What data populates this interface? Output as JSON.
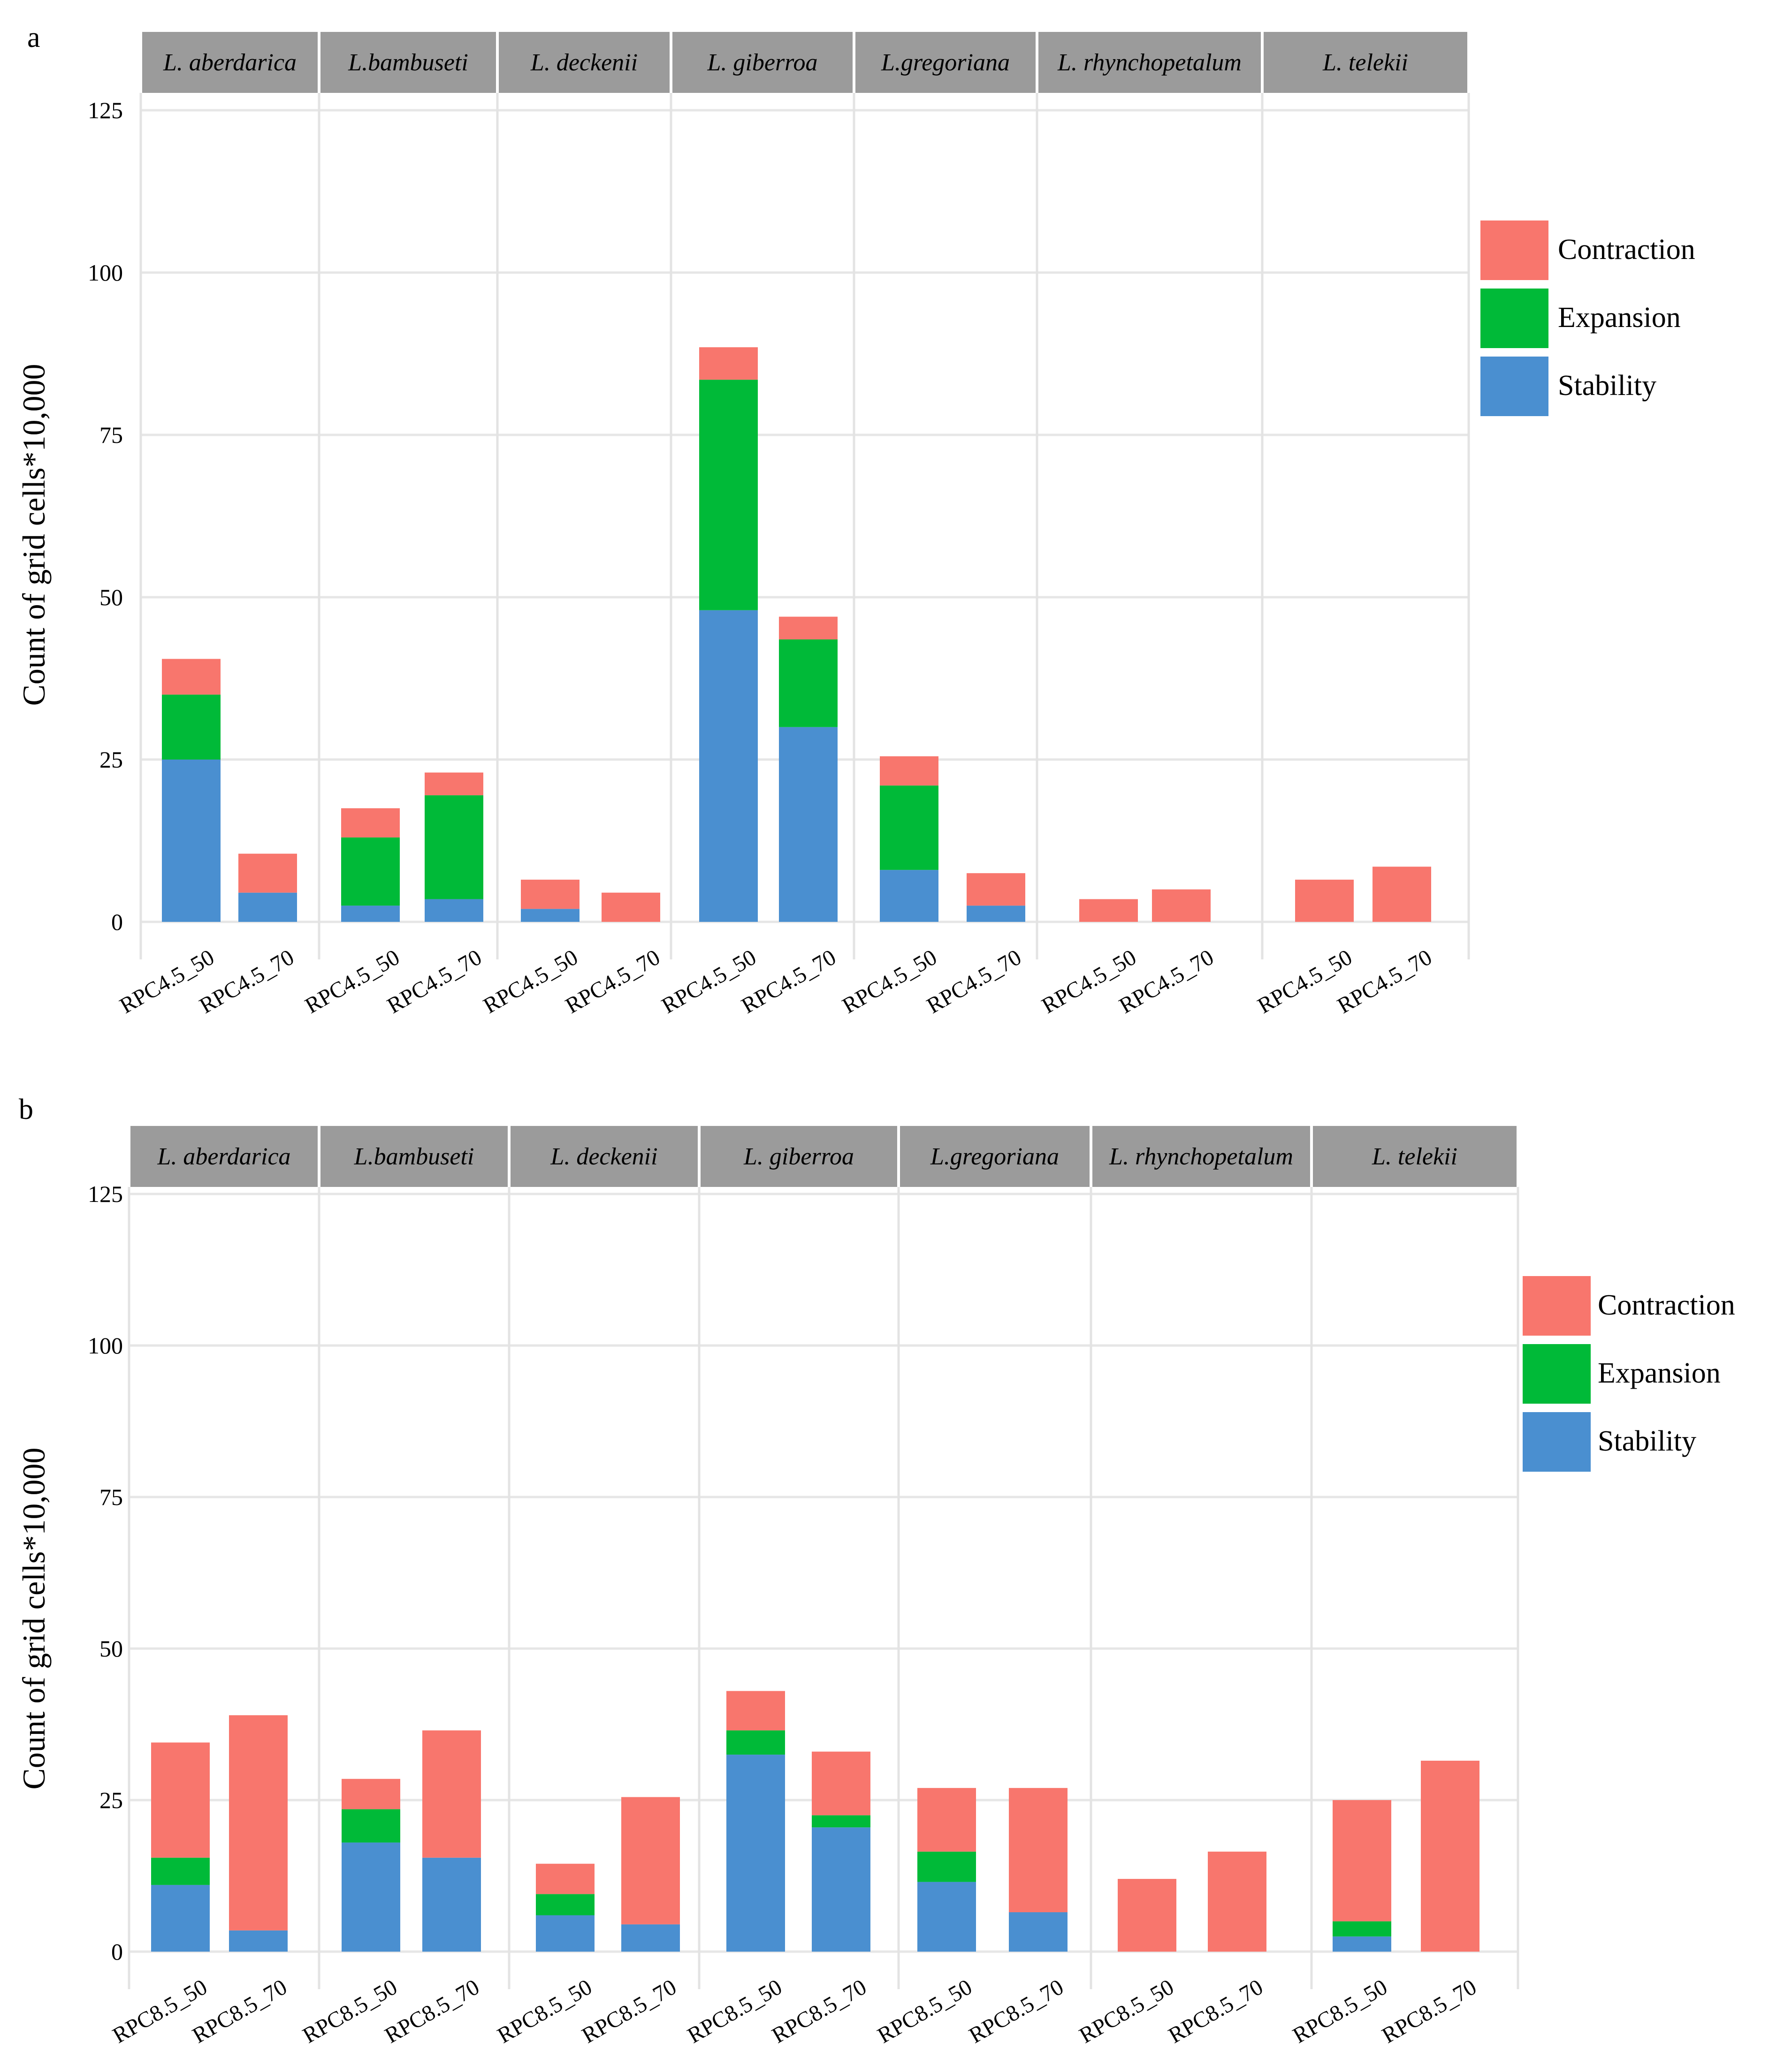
{
  "chart_data": [
    {
      "panel": "a",
      "type": "bar",
      "stacked": true,
      "ylabel": "Count of grid cells*10,000",
      "ylim": [
        0,
        125
      ],
      "yticks": [
        "0",
        "25",
        "50",
        "75",
        "100",
        "125"
      ],
      "facets": [
        "L. aberdarica",
        "L.bambuseti",
        "L. deckenii",
        "L. giberroa",
        "L.gregoriana",
        "L. rhynchopetalum",
        "L. telekii"
      ],
      "categories": [
        "RPC4.5_50",
        "RPC4.5_70"
      ],
      "legend": [
        "Contraction",
        "Expansion",
        "Stability"
      ],
      "colors": {
        "Contraction": "#F8766D",
        "Expansion": "#00BA38",
        "Stability": "#4A8FD0"
      },
      "series": [
        {
          "name": "Stability",
          "values": [
            [
              25,
              4.5
            ],
            [
              2.5,
              3.5
            ],
            [
              2,
              0
            ],
            [
              48,
              30
            ],
            [
              8,
              2.5
            ],
            [
              0,
              0
            ],
            [
              0,
              0
            ]
          ]
        },
        {
          "name": "Expansion",
          "values": [
            [
              10,
              0
            ],
            [
              10.5,
              16
            ],
            [
              0,
              0
            ],
            [
              35.5,
              13.5
            ],
            [
              13,
              0
            ],
            [
              0,
              0
            ],
            [
              0,
              0
            ]
          ]
        },
        {
          "name": "Contraction",
          "values": [
            [
              5.5,
              6
            ],
            [
              4.5,
              3.5
            ],
            [
              4.5,
              4.5
            ],
            [
              5,
              3.5
            ],
            [
              4.5,
              5
            ],
            [
              3.5,
              5
            ],
            [
              6.5,
              8.5
            ]
          ]
        }
      ]
    },
    {
      "panel": "b",
      "type": "bar",
      "stacked": true,
      "ylabel": "Count of grid cells*10,000",
      "ylim": [
        0,
        125
      ],
      "yticks": [
        "0",
        "25",
        "50",
        "75",
        "100",
        "125"
      ],
      "facets": [
        "L. aberdarica",
        "L.bambuseti",
        "L. deckenii",
        "L. giberroa",
        "L.gregoriana",
        "L. rhynchopetalum",
        "L. telekii"
      ],
      "categories": [
        "RPC8.5_50",
        "RPC8.5_70"
      ],
      "legend": [
        "Contraction",
        "Expansion",
        "Stability"
      ],
      "colors": {
        "Contraction": "#F8766D",
        "Expansion": "#00BA38",
        "Stability": "#4A8FD0"
      },
      "series": [
        {
          "name": "Stability",
          "values": [
            [
              11,
              3.5
            ],
            [
              18,
              15.5
            ],
            [
              6,
              4.5
            ],
            [
              32.5,
              20.5
            ],
            [
              11.5,
              6.5
            ],
            [
              0,
              0
            ],
            [
              2.5,
              0
            ]
          ]
        },
        {
          "name": "Expansion",
          "values": [
            [
              4.5,
              0
            ],
            [
              5.5,
              0
            ],
            [
              3.5,
              0
            ],
            [
              4,
              2
            ],
            [
              5,
              0
            ],
            [
              0,
              0
            ],
            [
              2.5,
              0
            ]
          ]
        },
        {
          "name": "Contraction",
          "values": [
            [
              19,
              35.5
            ],
            [
              5,
              21
            ],
            [
              5,
              21
            ],
            [
              6.5,
              10.5
            ],
            [
              10.5,
              20.5
            ],
            [
              12,
              16.5
            ],
            [
              20,
              31.5
            ]
          ]
        }
      ]
    }
  ]
}
